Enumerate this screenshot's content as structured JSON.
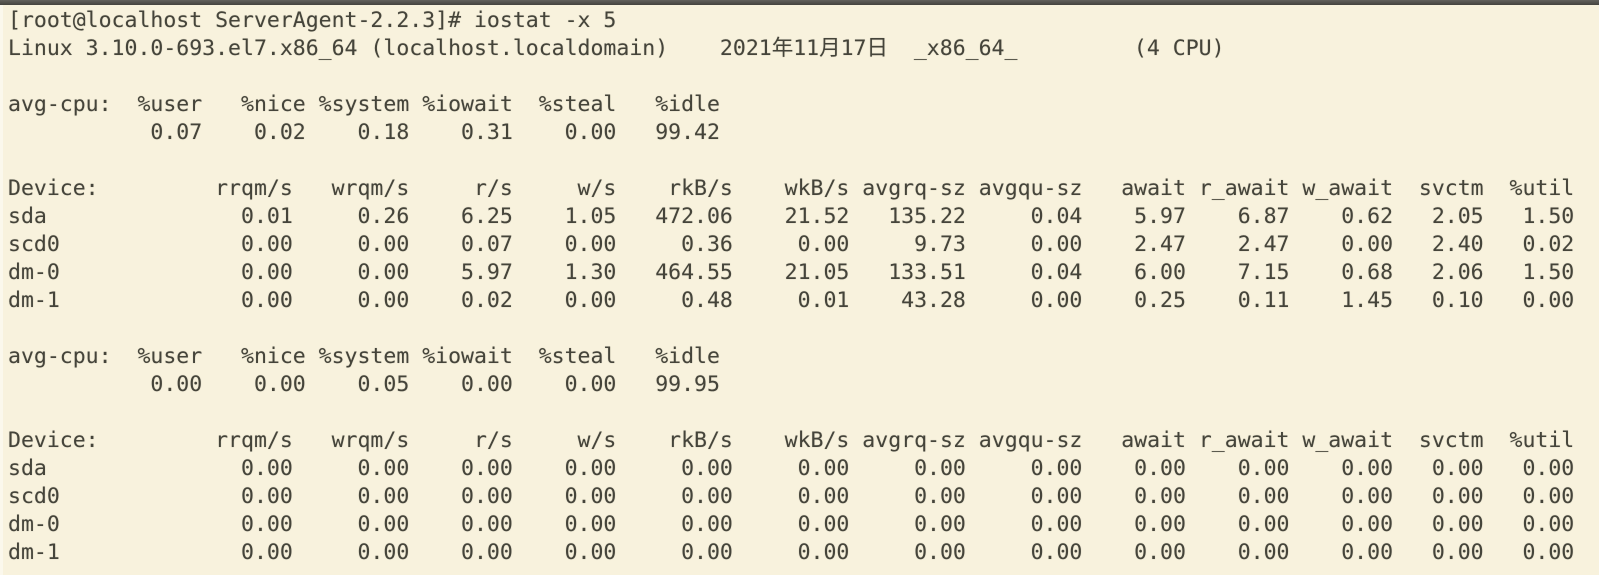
{
  "colors": {
    "background": "#f8f2dd",
    "text": "#45443a",
    "topbar": "#504f4a"
  },
  "terminal": {
    "prompt_line": "[root@localhost ServerAgent-2.2.3]# iostat -x 5",
    "banner": {
      "system": "Linux 3.10.0-693.el7.x86_64 (localhost.localdomain)",
      "date": "2021年11月17日",
      "arch": "_x86_64_",
      "cpu_count": "(4 CPU)"
    },
    "cpu_label": "avg-cpu:",
    "device_label": "Device:",
    "cpu_headers": [
      "%user",
      "%nice",
      "%system",
      "%iowait",
      "%steal",
      "%idle"
    ],
    "device_headers": [
      "rrqm/s",
      "wrqm/s",
      "r/s",
      "w/s",
      "rkB/s",
      "wkB/s",
      "avgrq-sz",
      "avgqu-sz",
      "await",
      "r_await",
      "w_await",
      "svctm",
      "%util"
    ],
    "reports": [
      {
        "cpu_values": [
          "0.07",
          "0.02",
          "0.18",
          "0.31",
          "0.00",
          "99.42"
        ],
        "device_rows": [
          {
            "name": "sda",
            "values": [
              "0.01",
              "0.26",
              "6.25",
              "1.05",
              "472.06",
              "21.52",
              "135.22",
              "0.04",
              "5.97",
              "6.87",
              "0.62",
              "2.05",
              "1.50"
            ]
          },
          {
            "name": "scd0",
            "values": [
              "0.00",
              "0.00",
              "0.07",
              "0.00",
              "0.36",
              "0.00",
              "9.73",
              "0.00",
              "2.47",
              "2.47",
              "0.00",
              "2.40",
              "0.02"
            ]
          },
          {
            "name": "dm-0",
            "values": [
              "0.00",
              "0.00",
              "5.97",
              "1.30",
              "464.55",
              "21.05",
              "133.51",
              "0.04",
              "6.00",
              "7.15",
              "0.68",
              "2.06",
              "1.50"
            ]
          },
          {
            "name": "dm-1",
            "values": [
              "0.00",
              "0.00",
              "0.02",
              "0.00",
              "0.48",
              "0.01",
              "43.28",
              "0.00",
              "0.25",
              "0.11",
              "1.45",
              "0.10",
              "0.00"
            ]
          }
        ]
      },
      {
        "cpu_values": [
          "0.00",
          "0.00",
          "0.05",
          "0.00",
          "0.00",
          "99.95"
        ],
        "device_rows": [
          {
            "name": "sda",
            "values": [
              "0.00",
              "0.00",
              "0.00",
              "0.00",
              "0.00",
              "0.00",
              "0.00",
              "0.00",
              "0.00",
              "0.00",
              "0.00",
              "0.00",
              "0.00"
            ]
          },
          {
            "name": "scd0",
            "values": [
              "0.00",
              "0.00",
              "0.00",
              "0.00",
              "0.00",
              "0.00",
              "0.00",
              "0.00",
              "0.00",
              "0.00",
              "0.00",
              "0.00",
              "0.00"
            ]
          },
          {
            "name": "dm-0",
            "values": [
              "0.00",
              "0.00",
              "0.00",
              "0.00",
              "0.00",
              "0.00",
              "0.00",
              "0.00",
              "0.00",
              "0.00",
              "0.00",
              "0.00",
              "0.00"
            ]
          },
          {
            "name": "dm-1",
            "values": [
              "0.00",
              "0.00",
              "0.00",
              "0.00",
              "0.00",
              "0.00",
              "0.00",
              "0.00",
              "0.00",
              "0.00",
              "0.00",
              "0.00",
              "0.00"
            ]
          }
        ]
      }
    ]
  }
}
